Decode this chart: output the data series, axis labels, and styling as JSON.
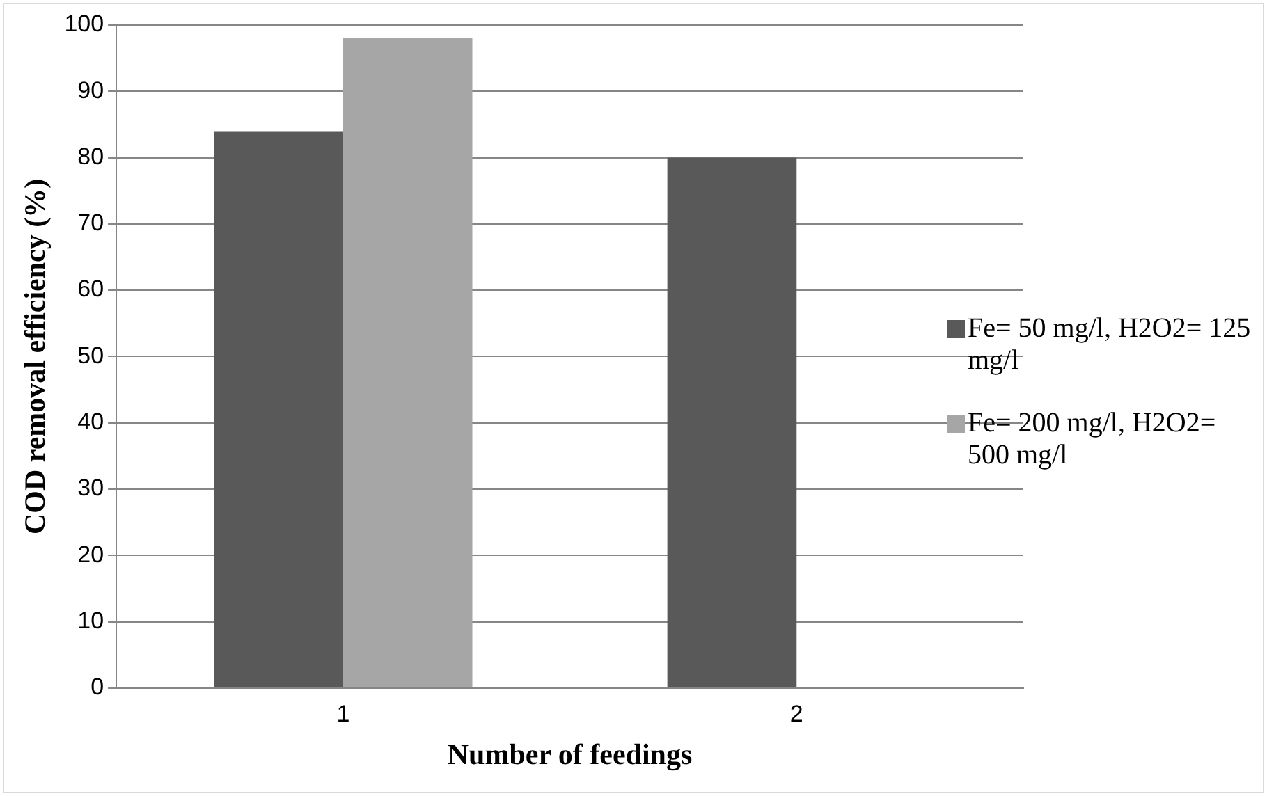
{
  "chart_data": {
    "type": "bar",
    "xlabel": "Number of feedings",
    "ylabel": "COD removal efficiency (%)",
    "categories": [
      "1",
      "2"
    ],
    "series": [
      {
        "name": "Fe= 50 mg/l, H2O2= 125 mg/l",
        "color": "#595959",
        "values": [
          84,
          80
        ]
      },
      {
        "name": "Fe= 200 mg/l, H2O2= 500 mg/l",
        "color": "#a6a6a6",
        "values": [
          98,
          null
        ]
      }
    ],
    "ylim": [
      0,
      100
    ],
    "yticks": [
      0,
      10,
      20,
      30,
      40,
      50,
      60,
      70,
      80,
      90,
      100
    ],
    "grid": "y",
    "legend": "right"
  }
}
